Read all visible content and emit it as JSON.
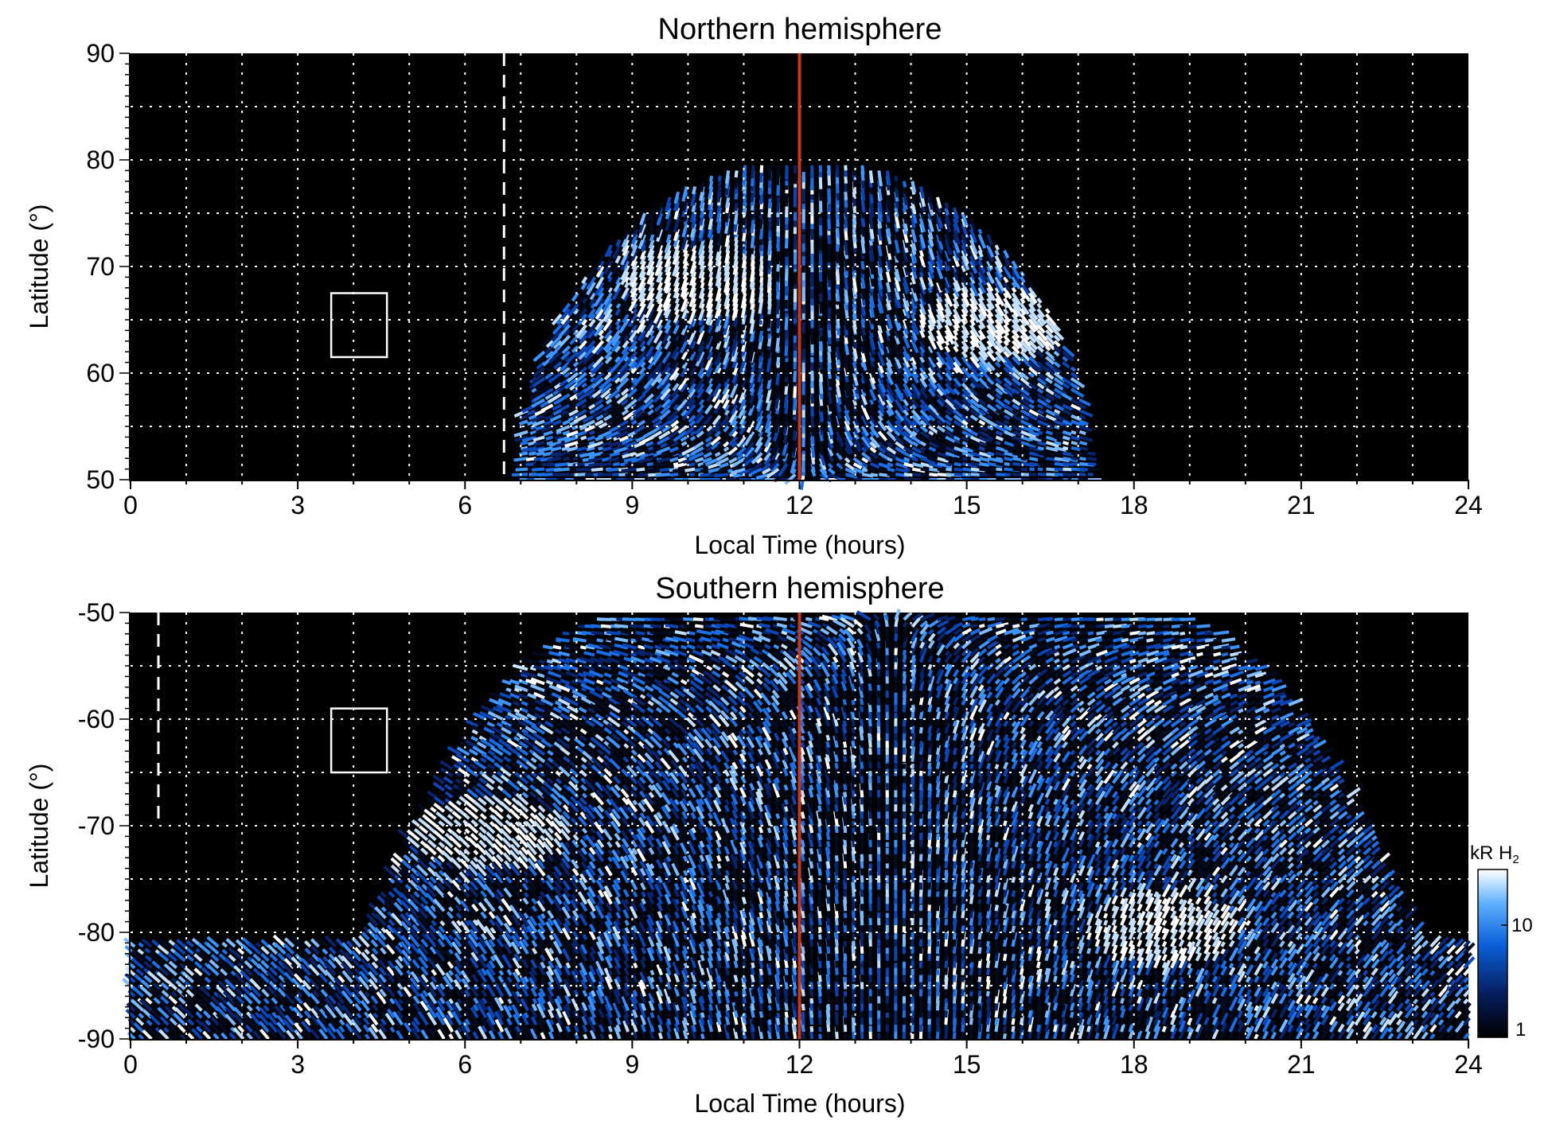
{
  "chart_data": [
    {
      "type": "heatmap",
      "title": "Northern hemisphere",
      "xlabel": "Local Time (hours)",
      "ylabel": "Latitude (°)",
      "xlim": [
        0,
        24
      ],
      "ylim": [
        50,
        90
      ],
      "x_ticks": [
        0,
        3,
        6,
        9,
        12,
        15,
        18,
        21,
        24
      ],
      "y_ticks": [
        50,
        60,
        70,
        80,
        90
      ],
      "x_tick_labels": [
        "0",
        "3",
        "6",
        "9",
        "12",
        "15",
        "18",
        "21",
        "24"
      ],
      "y_tick_labels": [
        "50",
        "60",
        "70",
        "80",
        "90"
      ],
      "grid": true,
      "noon_line_local_time": 12,
      "noon_line_color": "#c8381a",
      "dashed_line_local_time": 6.7,
      "box": {
        "local_time": [
          3.6,
          4.6
        ],
        "latitude": [
          61.5,
          67.5
        ]
      },
      "emission_region": {
        "local_time": [
          7,
          17.2
        ],
        "latitude_max": 80
      },
      "bright_spots": [
        {
          "local_time": 10.2,
          "latitude": 69,
          "intensity": 20
        },
        {
          "local_time": 15.5,
          "latitude": 65,
          "intensity": 10
        }
      ]
    },
    {
      "type": "heatmap",
      "title": "Southern hemisphere",
      "xlabel": "Local Time (hours)",
      "ylabel": "Latitude (°)",
      "xlim": [
        0,
        24
      ],
      "ylim": [
        -90,
        -50
      ],
      "x_ticks": [
        0,
        3,
        6,
        9,
        12,
        15,
        18,
        21,
        24
      ],
      "y_ticks": [
        -90,
        -80,
        -70,
        -60,
        -50
      ],
      "x_tick_labels": [
        "0",
        "3",
        "6",
        "9",
        "12",
        "15",
        "18",
        "21",
        "24"
      ],
      "y_tick_labels": [
        "-90",
        "-80",
        "-70",
        "-60",
        "-50"
      ],
      "grid": true,
      "noon_line_local_time": 12,
      "noon_line_color": "#c8381a",
      "dashed_line_local_time": 0.5,
      "box": {
        "local_time": [
          3.6,
          4.6
        ],
        "latitude": [
          -65,
          -59
        ]
      },
      "emission_region": {
        "local_time": [
          3.5,
          23.8
        ],
        "latitude_max": -50
      },
      "bright_spots": [
        {
          "local_time": 6.5,
          "latitude": -71,
          "intensity": 20
        },
        {
          "local_time": 18.5,
          "latitude": -80,
          "intensity": 20
        }
      ]
    }
  ],
  "colorbar": {
    "unit_main": "kR H",
    "unit_sub": "2",
    "scale": "log",
    "range": [
      1,
      25
    ],
    "ticks": [
      1,
      10
    ],
    "tick_labels": [
      "1",
      "10"
    ]
  },
  "colors": {
    "background": "#000000",
    "grid": "#ffffff",
    "noon_line": "#c8381a",
    "emission_dark": "#03112e",
    "emission_mid": "#1a6fe6",
    "emission_bright": "#e8f3ff"
  }
}
